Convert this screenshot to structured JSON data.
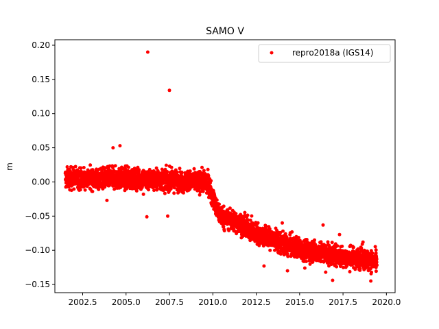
{
  "chart_data": {
    "type": "scatter",
    "title": "SAMO V",
    "xlabel": "",
    "ylabel": "m",
    "xlim": [
      2000.9,
      2020.5
    ],
    "ylim": [
      -0.162,
      0.208
    ],
    "grid": false,
    "legend_position": "top-right",
    "xticks": [
      2002.5,
      2005.0,
      2007.5,
      2010.0,
      2012.5,
      2015.0,
      2017.5,
      2020.0
    ],
    "xtick_labels": [
      "2002.5",
      "2005.0",
      "2007.5",
      "2010.0",
      "2012.5",
      "2015.0",
      "2017.5",
      "2020.0"
    ],
    "yticks": [
      -0.15,
      -0.1,
      -0.05,
      0.0,
      0.05,
      0.1,
      0.15,
      0.2
    ],
    "ytick_labels": [
      "−0.15",
      "−0.10",
      "−0.05",
      "0.00",
      "0.05",
      "0.10",
      "0.15",
      "0.20"
    ],
    "series": [
      {
        "name": "repro2018a (IGS14)",
        "color": "#ff0000",
        "marker": "circle",
        "x_range": [
          2001.5,
          2019.45
        ],
        "trend": [
          [
            2001.5,
            0.005
          ],
          [
            2005.0,
            0.005
          ],
          [
            2008.0,
            0.002
          ],
          [
            2009.6,
            0.0
          ],
          [
            2009.8,
            -0.005
          ],
          [
            2010.2,
            -0.04
          ],
          [
            2010.6,
            -0.052
          ],
          [
            2011.5,
            -0.06
          ],
          [
            2012.5,
            -0.075
          ],
          [
            2013.5,
            -0.085
          ],
          [
            2014.5,
            -0.095
          ],
          [
            2015.5,
            -0.1
          ],
          [
            2016.5,
            -0.105
          ],
          [
            2017.5,
            -0.11
          ],
          [
            2018.5,
            -0.112
          ],
          [
            2019.45,
            -0.118
          ]
        ],
        "scatter_amplitude": 0.012,
        "outliers": [
          {
            "x": 2006.25,
            "y": 0.19
          },
          {
            "x": 2007.5,
            "y": 0.134
          },
          {
            "x": 2004.25,
            "y": 0.05
          },
          {
            "x": 2004.65,
            "y": 0.053
          },
          {
            "x": 2003.9,
            "y": -0.027
          },
          {
            "x": 2006.2,
            "y": -0.051
          },
          {
            "x": 2007.4,
            "y": -0.05
          },
          {
            "x": 2006.0,
            "y": -0.018
          },
          {
            "x": 2012.95,
            "y": -0.123
          },
          {
            "x": 2016.5,
            "y": -0.132
          },
          {
            "x": 2016.9,
            "y": -0.144
          },
          {
            "x": 2019.1,
            "y": -0.145
          },
          {
            "x": 2016.35,
            "y": -0.063
          },
          {
            "x": 2014.0,
            "y": -0.06
          },
          {
            "x": 2014.3,
            "y": -0.13
          },
          {
            "x": 2015.3,
            "y": -0.126
          },
          {
            "x": 2017.3,
            "y": -0.077
          },
          {
            "x": 2018.65,
            "y": -0.088
          }
        ]
      }
    ]
  }
}
